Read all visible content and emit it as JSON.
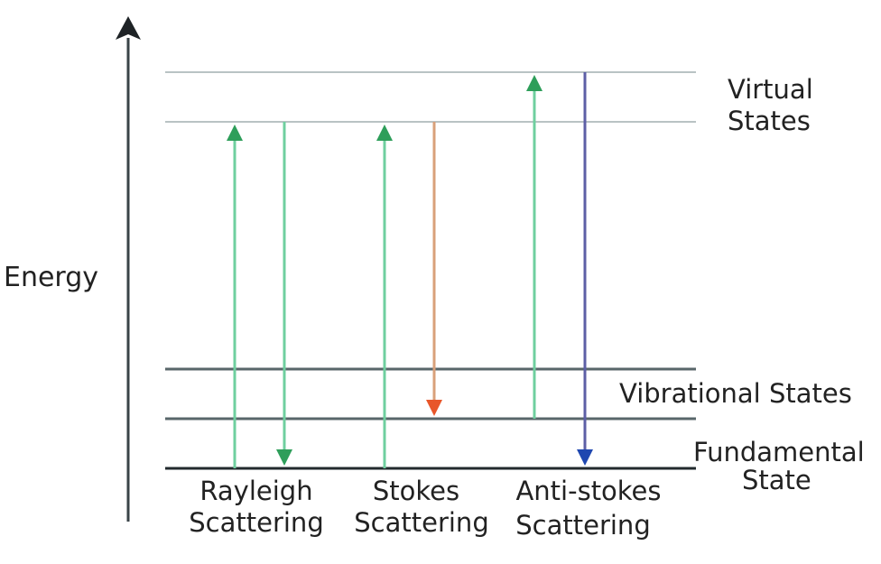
{
  "axis": {
    "label": "Energy"
  },
  "levels": {
    "virtual_label_line1": "Virtual",
    "virtual_label_line2": "States",
    "vibrational_label": "Vibrational States",
    "fundamental_label_line1": "Fundamental",
    "fundamental_label_line2": "State"
  },
  "processes": [
    {
      "line1": "Rayleigh",
      "line2": "Scattering"
    },
    {
      "line1": "Stokes",
      "line2": "Scattering"
    },
    {
      "line1": "Anti-stokes",
      "line2": "Scattering"
    }
  ],
  "colors": {
    "axis": "#3a4448",
    "virtual_level": "#b9c3c4",
    "vibrational_level": "#58666a",
    "fundamental_level": "#222a2d",
    "excitation_arrow": "#6fcf9f",
    "excitation_head": "#2e9e5a",
    "stokes_arrow": "#d9a07a",
    "stokes_head": "#e8562a",
    "antistokes_arrow": "#5d5fa6",
    "antistokes_head": "#1f47b0"
  }
}
